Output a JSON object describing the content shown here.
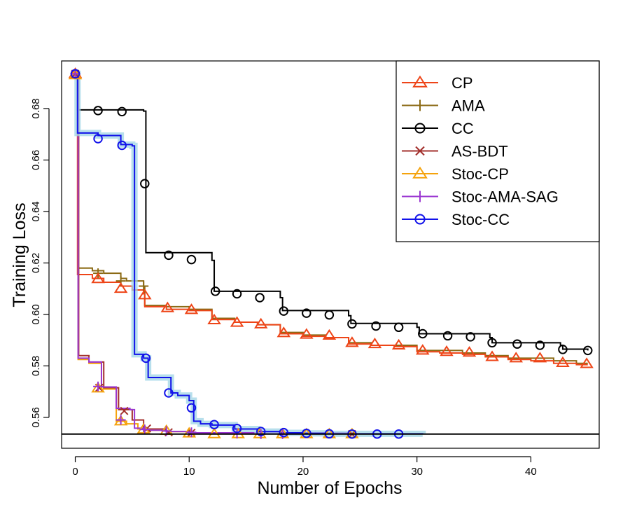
{
  "chart_data": {
    "type": "line",
    "title": "",
    "xlabel": "Number of Epochs",
    "ylabel": "Training Loss",
    "xlim": [
      -1.2,
      46
    ],
    "ylim": [
      0.548,
      0.6985
    ],
    "xticks": [
      0,
      10,
      20,
      30,
      40
    ],
    "yticks": [
      0.56,
      0.58,
      0.6,
      0.62,
      0.64,
      0.66,
      0.68
    ],
    "ytick_labels": [
      "0.56",
      "0.58",
      "0.60",
      "0.62",
      "0.64",
      "0.66",
      "0.68"
    ],
    "xtick_labels": [
      "0",
      "10",
      "20",
      "30",
      "40"
    ],
    "reference_line": 0.5535,
    "legend_position": "top-right",
    "series": [
      {
        "name": "CC",
        "color": "#000000",
        "marker": "circle",
        "x": [
          0,
          0.2,
          6,
          6.2,
          12,
          12.2,
          18,
          18.2,
          24,
          24.2,
          30,
          30.2,
          36.4,
          36.6,
          42.6,
          42.8,
          45
        ],
        "y": [
          0.6935,
          0.6795,
          0.679,
          0.624,
          0.621,
          0.609,
          0.6065,
          0.6015,
          0.5995,
          0.5965,
          0.595,
          0.5925,
          0.591,
          0.589,
          0.588,
          0.5865,
          0.586
        ],
        "marker_x": [
          0,
          2,
          4.1,
          6.1,
          8.2,
          10.2,
          12.3,
          14.2,
          16.2,
          18.3,
          20.3,
          22.3,
          24.3,
          26.4,
          28.4,
          30.5,
          32.7,
          34.7,
          36.6,
          38.8,
          40.8,
          42.8,
          45
        ],
        "marker_y": [
          0.6935,
          0.6792,
          0.6788,
          0.6508,
          0.623,
          0.6213,
          0.609,
          0.608,
          0.6065,
          0.6013,
          0.6005,
          0.5998,
          0.5963,
          0.5955,
          0.595,
          0.5925,
          0.5917,
          0.5913,
          0.589,
          0.5885,
          0.588,
          0.5864,
          0.586
        ]
      },
      {
        "name": "AMA",
        "color": "#8b6a14",
        "marker": "plus",
        "x": [
          0,
          0.25,
          1.5,
          2.5,
          4,
          4.5,
          6,
          6.1,
          7,
          8,
          10,
          12,
          14,
          16,
          18,
          20,
          22,
          24,
          26,
          28,
          30,
          32,
          34,
          36,
          38,
          40,
          42,
          44,
          45
        ],
        "y": [
          0.6935,
          0.618,
          0.617,
          0.616,
          0.614,
          0.613,
          0.611,
          0.6035,
          0.6035,
          0.603,
          0.602,
          0.5985,
          0.597,
          0.596,
          0.593,
          0.592,
          0.591,
          0.589,
          0.588,
          0.588,
          0.586,
          0.586,
          0.585,
          0.584,
          0.583,
          0.583,
          0.582,
          0.581,
          0.581
        ],
        "marker_x": [
          0,
          2,
          4,
          6
        ],
        "marker_y": [
          0.6935,
          0.616,
          0.613,
          0.611
        ]
      },
      {
        "name": "CP",
        "color": "#ee4518",
        "marker": "triangle",
        "x": [
          0,
          0.2,
          1.5,
          2.5,
          4,
          5,
          6,
          6.1,
          8,
          10,
          12,
          14,
          16,
          18,
          20,
          22,
          24,
          26,
          28,
          30,
          32,
          34,
          36,
          38,
          40,
          42,
          44,
          45
        ],
        "y": [
          0.6935,
          0.6155,
          0.614,
          0.6125,
          0.611,
          0.6095,
          0.608,
          0.603,
          0.602,
          0.6015,
          0.598,
          0.597,
          0.596,
          0.5925,
          0.5915,
          0.591,
          0.5885,
          0.588,
          0.5875,
          0.5855,
          0.585,
          0.5845,
          0.5835,
          0.5825,
          0.582,
          0.581,
          0.5805,
          0.5805
        ],
        "marker_x": [
          0,
          2,
          4,
          6.1,
          8.1,
          10.2,
          12.2,
          14.2,
          16.3,
          18.3,
          20.3,
          22.3,
          24.3,
          26.3,
          28.4,
          30.5,
          32.6,
          34.6,
          36.6,
          38.7,
          40.8,
          42.8,
          44.9
        ],
        "marker_y": [
          0.6935,
          0.6138,
          0.61,
          0.6075,
          0.6025,
          0.6018,
          0.5978,
          0.5968,
          0.5962,
          0.5928,
          0.5922,
          0.5918,
          0.589,
          0.5885,
          0.588,
          0.586,
          0.5855,
          0.5852,
          0.5835,
          0.583,
          0.583,
          0.5812,
          0.5808
        ]
      },
      {
        "name": "AS-BDT",
        "color": "#a3302d",
        "marker": "cross",
        "x": [
          0,
          0.3,
          1.2,
          1.6,
          2.5,
          3.5,
          3.8,
          5,
          6,
          8,
          10,
          12,
          24.5
        ],
        "y": [
          0.6935,
          0.584,
          0.5815,
          0.5815,
          0.5715,
          0.5715,
          0.563,
          0.559,
          0.5555,
          0.5545,
          0.554,
          0.5538,
          0.5535
        ],
        "marker_x": [
          0,
          2.1,
          4.3,
          6.3,
          8.2,
          10.2,
          24.3
        ],
        "marker_y": [
          0.6935,
          0.5715,
          0.5625,
          0.5557,
          0.5542,
          0.554,
          0.5535
        ]
      },
      {
        "name": "Stoc-CP",
        "color": "#f5a30c",
        "marker": "triangle",
        "x": [
          0,
          0.25,
          1.2,
          1.6,
          2.3,
          3.3,
          3.6,
          4.5,
          5.5,
          6.2,
          8,
          10,
          24.5
        ],
        "y": [
          0.6935,
          0.5825,
          0.581,
          0.581,
          0.571,
          0.571,
          0.5585,
          0.5575,
          0.5555,
          0.555,
          0.5545,
          0.554,
          0.5535
        ],
        "marker_x": [
          0,
          2,
          4,
          6,
          8,
          10,
          12.2,
          14.3,
          16.2,
          18.2,
          20.3,
          22.3,
          24.3
        ],
        "marker_y": [
          0.693,
          0.5713,
          0.5585,
          0.5553,
          0.5548,
          0.5538,
          0.5535,
          0.5535,
          0.5535,
          0.5535,
          0.5535,
          0.5535,
          0.5535
        ]
      },
      {
        "name": "Stoc-AMA-SAG",
        "color": "#9a36d1",
        "marker": "plus",
        "x": [
          0,
          0.25,
          1.2,
          1.5,
          2.3,
          3.3,
          3.6,
          4.8,
          5.2,
          6,
          8,
          10,
          24.5
        ],
        "y": [
          0.6935,
          0.583,
          0.5815,
          0.5815,
          0.5718,
          0.5718,
          0.5635,
          0.563,
          0.5558,
          0.555,
          0.5545,
          0.554,
          0.5535
        ],
        "marker_x": [
          0,
          2,
          4,
          6.1,
          8,
          10.2,
          14.2,
          16.3,
          18.2
        ],
        "marker_y": [
          0.6935,
          0.572,
          0.559,
          0.5553,
          0.5547,
          0.5542,
          0.5537,
          0.5535,
          0.5535
        ]
      },
      {
        "name": "Stoc-CC",
        "color": "#1212ea",
        "marker": "circle",
        "band": true,
        "x": [
          0,
          0.2,
          2,
          4,
          5,
          5.2,
          6,
          6.4,
          7,
          8,
          8.4,
          9,
          10,
          10.4,
          11,
          12,
          14,
          16,
          18,
          20,
          22,
          30.5
        ],
        "y": [
          0.6935,
          0.6705,
          0.6695,
          0.666,
          0.6655,
          0.5845,
          0.583,
          0.5755,
          0.5755,
          0.5755,
          0.5695,
          0.5685,
          0.5665,
          0.5585,
          0.5575,
          0.557,
          0.5555,
          0.5545,
          0.554,
          0.5538,
          0.5536,
          0.5535
        ],
        "marker_x": [
          0,
          2,
          4.1,
          6.2,
          8.2,
          10.2,
          12.2,
          14.2,
          16.3,
          18.3,
          20.3,
          22.3,
          24.3,
          26.5,
          28.4
        ],
        "marker_y": [
          0.6935,
          0.6683,
          0.6657,
          0.583,
          0.5695,
          0.5637,
          0.5572,
          0.5557,
          0.5545,
          0.5541,
          0.5538,
          0.5536,
          0.5535,
          0.5535,
          0.5535
        ]
      }
    ],
    "legend_order": [
      "CP",
      "AMA",
      "CC",
      "AS-BDT",
      "Stoc-CP",
      "Stoc-AMA-SAG",
      "Stoc-CC"
    ]
  }
}
